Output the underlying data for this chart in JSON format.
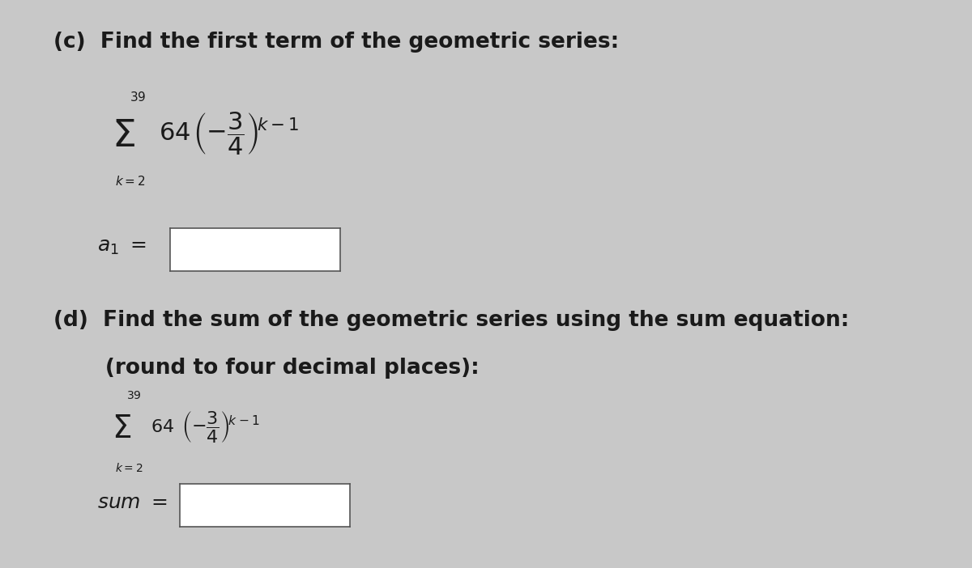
{
  "bg_color": "#c8c8c8",
  "box_fill": "#ffffff",
  "box_edge": "#555555",
  "text_color": "#1a1a1a",
  "title_c": "(c)  Find the first term of the geometric series:",
  "title_d1": "(d)  Find the sum of the geometric series using the sum equation:",
  "title_d2": "       (round to four decimal places):",
  "font_size_title": 19,
  "font_size_formula_large": 22,
  "font_size_formula_small": 16,
  "font_size_sigma_large": 34,
  "font_size_sigma_small": 28,
  "font_size_limit_large": 11,
  "font_size_limit_small": 10,
  "font_size_label": 18
}
